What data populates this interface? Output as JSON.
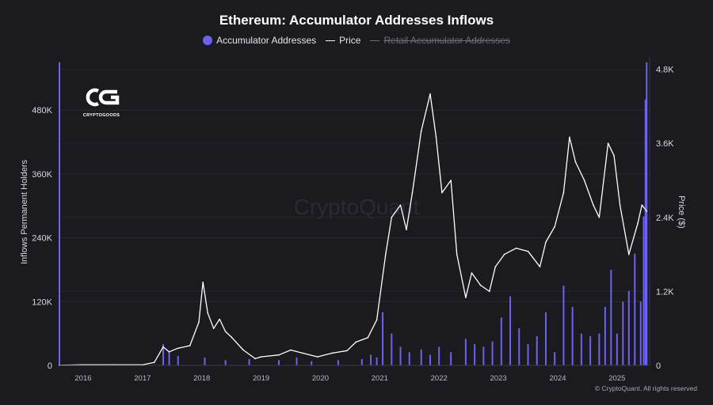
{
  "colors": {
    "background": "#1a1a1f",
    "accumulator": "#6b63f0",
    "price": "#ffffff",
    "grid": "#2b2b32",
    "disabled": "#6f6f78"
  },
  "logo": {
    "icon": "cryptogoods-logo",
    "text": "CRYPTOGOODS"
  },
  "watermark": "CryptoQuant",
  "copyright": "© CryptoQuant. All rights reserved",
  "legend": [
    {
      "label": "Accumulator Addresses",
      "icon": "dot",
      "color": "#6b63f0",
      "enabled": true
    },
    {
      "label": "Price",
      "icon": "line",
      "color": "#ffffff",
      "enabled": true
    },
    {
      "label": "Retail Accumulator Addresses",
      "icon": "line",
      "color": "#6f6f78",
      "enabled": false
    }
  ],
  "chart_data": {
    "type": "bar",
    "title": "Ethereum: Accumulator Addresses Inflows",
    "ylabel": "Inflows Permanent Holders",
    "y2label": "Price ($)",
    "ylim": [
      0,
      580000
    ],
    "y2lim": [
      0,
      5000
    ],
    "yticks": [
      "0",
      "120K",
      "240K",
      "360K",
      "480K"
    ],
    "y2ticks": [
      "0",
      "1.2K",
      "2.4K",
      "3.6K",
      "4.8K"
    ],
    "xticks": [
      "2016",
      "2017",
      "2018",
      "2019",
      "2020",
      "2021",
      "2022",
      "2023",
      "2024",
      "2025"
    ],
    "grid": true,
    "legend_position": "top-center",
    "series": [
      {
        "name": "Accumulator Addresses",
        "type": "bar",
        "axis": "left",
        "x": [
          2015.6,
          2017.35,
          2017.45,
          2017.6,
          2018.05,
          2018.4,
          2018.8,
          2019.3,
          2019.6,
          2019.85,
          2020.3,
          2020.7,
          2020.85,
          2020.95,
          2021.05,
          2021.2,
          2021.35,
          2021.5,
          2021.7,
          2021.85,
          2022.0,
          2022.2,
          2022.45,
          2022.6,
          2022.75,
          2022.9,
          2023.05,
          2023.2,
          2023.35,
          2023.5,
          2023.65,
          2023.8,
          2023.95,
          2024.1,
          2024.25,
          2024.4,
          2024.55,
          2024.7,
          2024.8,
          2024.9,
          2025.0,
          2025.1,
          2025.2,
          2025.3,
          2025.4,
          2025.45,
          2025.48,
          2025.5
        ],
        "values": [
          570000,
          40000,
          25000,
          18000,
          15000,
          10000,
          12000,
          10000,
          15000,
          8000,
          10000,
          12000,
          20000,
          15000,
          100000,
          60000,
          35000,
          25000,
          30000,
          20000,
          35000,
          25000,
          50000,
          40000,
          35000,
          45000,
          90000,
          130000,
          70000,
          40000,
          55000,
          100000,
          25000,
          150000,
          110000,
          60000,
          55000,
          60000,
          110000,
          180000,
          60000,
          120000,
          140000,
          210000,
          120000,
          280000,
          500000,
          570000
        ]
      },
      {
        "name": "Price",
        "type": "line",
        "axis": "right",
        "x": [
          2015.6,
          2016.0,
          2016.5,
          2017.0,
          2017.2,
          2017.35,
          2017.45,
          2017.6,
          2017.8,
          2017.95,
          2018.02,
          2018.1,
          2018.2,
          2018.3,
          2018.4,
          2018.5,
          2018.7,
          2018.9,
          2019.0,
          2019.3,
          2019.5,
          2019.7,
          2019.95,
          2020.2,
          2020.45,
          2020.6,
          2020.8,
          2020.95,
          2021.1,
          2021.2,
          2021.35,
          2021.45,
          2021.55,
          2021.7,
          2021.85,
          2021.95,
          2022.05,
          2022.2,
          2022.3,
          2022.45,
          2022.55,
          2022.7,
          2022.85,
          2022.95,
          2023.1,
          2023.3,
          2023.5,
          2023.7,
          2023.8,
          2023.95,
          2024.1,
          2024.2,
          2024.3,
          2024.45,
          2024.6,
          2024.7,
          2024.85,
          2024.95,
          2025.05,
          2025.2,
          2025.35,
          2025.42,
          2025.5
        ],
        "values": [
          2,
          10,
          12,
          10,
          50,
          300,
          220,
          280,
          320,
          700,
          1350,
          850,
          600,
          750,
          550,
          460,
          250,
          110,
          140,
          170,
          250,
          200,
          140,
          200,
          240,
          380,
          450,
          740,
          1800,
          2400,
          2600,
          2200,
          2800,
          3800,
          4400,
          3700,
          2800,
          3000,
          1800,
          1100,
          1500,
          1300,
          1200,
          1600,
          1800,
          1900,
          1850,
          1600,
          2000,
          2250,
          2800,
          3700,
          3300,
          3000,
          2600,
          2400,
          3600,
          3400,
          2600,
          1800,
          2300,
          2600,
          2500
        ]
      }
    ]
  }
}
